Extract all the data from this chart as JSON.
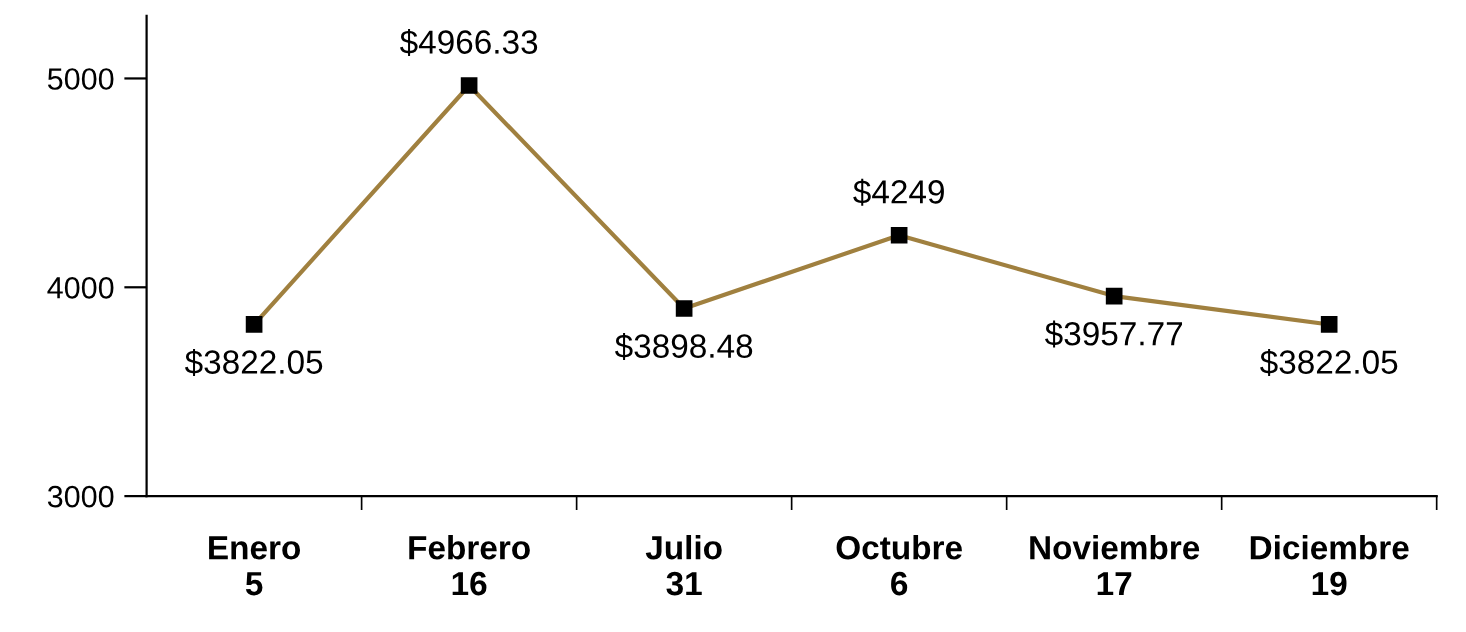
{
  "chart_data": {
    "type": "line",
    "categories": [
      "Enero\n5",
      "Febrero\n16",
      "Julio\n31",
      "Octubre\n6",
      "Noviembre\n17",
      "Diciembre\n19"
    ],
    "series": [
      {
        "color": "#a0803f",
        "values": [
          3822.05,
          4966.33,
          3898.48,
          4249,
          3957.77,
          3822.05
        ],
        "value_labels": [
          "$3822.05",
          "$4966.33",
          "$3898.48",
          "$4249",
          "$3957.77",
          "$3822.05"
        ]
      }
    ],
    "ylim": [
      3000,
      5300
    ],
    "yticks": [
      3000,
      4000,
      5000
    ],
    "marker": "square",
    "grid": false
  }
}
